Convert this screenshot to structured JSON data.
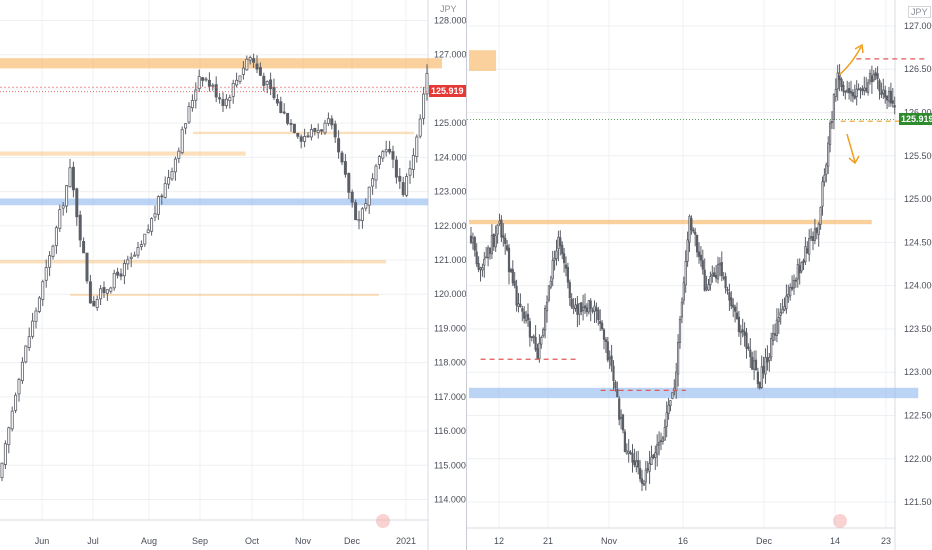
{
  "colors": {
    "candle": "#5b5e66",
    "grid": "#eef0f3",
    "axis_text": "#4a4e59",
    "orange_zone": "#f8b968",
    "blue_zone": "#9ec1f0",
    "red_dash": "#e05a5a",
    "orange_dash": "#e8a127",
    "arrow": "#f0a020",
    "price_tag_left": "#e53935",
    "price_tag_right": "#2e8b2e"
  },
  "chart_data": [
    {
      "type": "candlestick",
      "currency_label": "JPY",
      "current_price": "125.919",
      "y_ticks": [
        "128.000",
        "127.000",
        "126.000",
        "125.000",
        "124.000",
        "123.000",
        "122.000",
        "121.000",
        "120.000",
        "119.000",
        "118.000",
        "117.000",
        "116.000",
        "115.000",
        "114.000"
      ],
      "ylim": [
        113.4,
        128.6
      ],
      "x_ticks": [
        "Jun",
        "Jul",
        "Aug",
        "Sep",
        "Oct",
        "Nov",
        "Dec",
        "2021"
      ],
      "price_path": [
        [
          0,
          114.6
        ],
        [
          5,
          117.5
        ],
        [
          14,
          121.0
        ],
        [
          20,
          123.6
        ],
        [
          26,
          119.7
        ],
        [
          33,
          120.5
        ],
        [
          40,
          121.3
        ],
        [
          50,
          124.0
        ],
        [
          57,
          126.5
        ],
        [
          64,
          125.6
        ],
        [
          71,
          127.0
        ],
        [
          80,
          125.4
        ],
        [
          86,
          124.6
        ],
        [
          94,
          125.0
        ],
        [
          102,
          122.1
        ],
        [
          110,
          124.4
        ],
        [
          115,
          123.0
        ],
        [
          119,
          124.6
        ],
        [
          122,
          126.6
        ]
      ],
      "zones": [
        {
          "kind": "orange",
          "x0": 0,
          "x1": 126,
          "y0": 126.6,
          "y1": 126.9
        },
        {
          "kind": "orange_faint",
          "x0": 0,
          "x1": 70,
          "y0": 124.05,
          "y1": 124.17
        },
        {
          "kind": "orange_faint",
          "x0": 55,
          "x1": 118,
          "y0": 124.68,
          "y1": 124.75
        },
        {
          "kind": "blue",
          "x0": 0,
          "x1": 122,
          "y0": 122.6,
          "y1": 122.8
        },
        {
          "kind": "orange_faint",
          "x0": 0,
          "x1": 110,
          "y0": 120.9,
          "y1": 121.0
        },
        {
          "kind": "orange_faint",
          "x0": 20,
          "x1": 108,
          "y0": 119.95,
          "y1": 120.01
        }
      ]
    },
    {
      "type": "candlestick",
      "currency_label": "JPY",
      "current_price": "125.919",
      "y_ticks": [
        "127.000",
        "126.500",
        "126.000",
        "125.500",
        "125.000",
        "124.500",
        "124.000",
        "123.500",
        "123.000",
        "122.500",
        "122.000",
        "121.500"
      ],
      "ylim": [
        121.2,
        127.3
      ],
      "x_ticks": [
        "12",
        "21",
        "Nov",
        "16",
        "Dec",
        "14",
        "23"
      ],
      "price_path": [
        [
          0,
          124.6
        ],
        [
          3,
          124.2
        ],
        [
          8,
          124.7
        ],
        [
          12,
          123.9
        ],
        [
          18,
          123.2
        ],
        [
          23,
          124.6
        ],
        [
          27,
          123.7
        ],
        [
          32,
          123.8
        ],
        [
          37,
          123.0
        ],
        [
          40,
          122.2
        ],
        [
          45,
          121.7
        ],
        [
          50,
          122.3
        ],
        [
          53,
          122.8
        ],
        [
          57,
          124.8
        ],
        [
          61,
          124.0
        ],
        [
          65,
          124.2
        ],
        [
          70,
          123.5
        ],
        [
          75,
          122.9
        ],
        [
          80,
          123.6
        ],
        [
          85,
          124.2
        ],
        [
          90,
          124.7
        ],
        [
          95,
          126.4
        ],
        [
          100,
          126.2
        ],
        [
          104,
          126.4
        ],
        [
          108,
          126.2
        ],
        [
          110,
          126.0
        ]
      ],
      "zones": [
        {
          "kind": "orange",
          "x0": 0,
          "x1": 7,
          "y0": 126.48,
          "y1": 126.72
        },
        {
          "kind": "orange",
          "x0": 0,
          "x1": 104,
          "y0": 124.71,
          "y1": 124.76
        },
        {
          "kind": "blue",
          "x0": 0,
          "x1": 116,
          "y0": 122.7,
          "y1": 122.82
        }
      ],
      "dashed_levels": [
        {
          "kind": "red",
          "x0": 3,
          "x1": 28,
          "y": 123.15
        },
        {
          "kind": "red",
          "x0": 34,
          "x1": 56,
          "y": 122.79
        },
        {
          "kind": "red",
          "x0": 100,
          "x1": 118,
          "y": 126.62
        },
        {
          "kind": "orange",
          "x0": 96,
          "x1": 118,
          "y": 125.9
        }
      ],
      "arrows": [
        "up-right",
        "down-right"
      ]
    }
  ]
}
